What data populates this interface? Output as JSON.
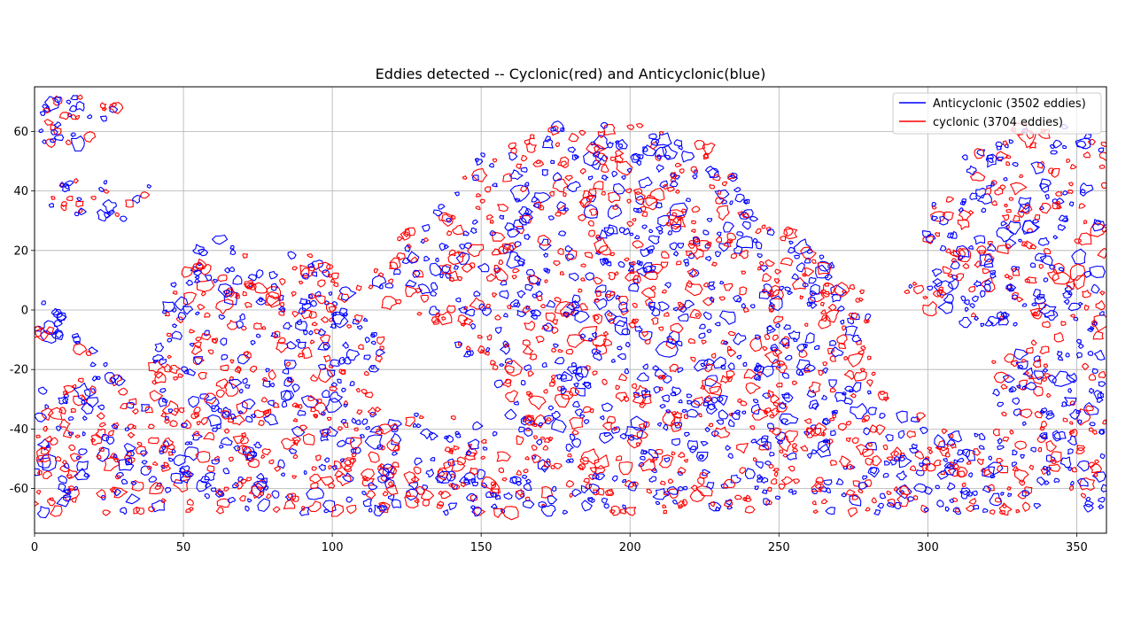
{
  "chart_data": {
    "type": "scatter",
    "title": "Eddies detected -- Cyclonic(red) and Anticyclonic(blue)",
    "xlabel": "",
    "ylabel": "",
    "xlim": [
      0,
      360
    ],
    "ylim": [
      -75,
      75
    ],
    "x_ticks": [
      "0",
      "50",
      "100",
      "150",
      "200",
      "250",
      "300",
      "350"
    ],
    "y_ticks": [
      "-60",
      "-40",
      "-20",
      "0",
      "20",
      "40",
      "60"
    ],
    "grid": true,
    "legend_position": "top-right",
    "series": [
      {
        "name": "Anticyclonic (3502 eddies)",
        "color": "#0000ff",
        "marker": "contour",
        "count": 3502
      },
      {
        "name": "cyclonic (3704 eddies)",
        "color": "#ff0000",
        "marker": "contour",
        "count": 3704
      }
    ]
  }
}
